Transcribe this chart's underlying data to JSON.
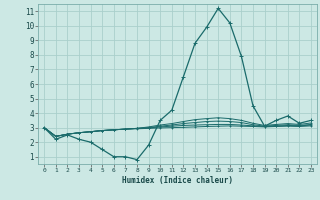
{
  "xlabel": "Humidex (Indice chaleur)",
  "bg_color": "#cce8e4",
  "grid_color": "#aacfcc",
  "line_color": "#1a6b6b",
  "xlim": [
    -0.5,
    23.5
  ],
  "ylim": [
    0.5,
    11.5
  ],
  "xticks": [
    0,
    1,
    2,
    3,
    4,
    5,
    6,
    7,
    8,
    9,
    10,
    11,
    12,
    13,
    14,
    15,
    16,
    17,
    18,
    19,
    20,
    21,
    22,
    23
  ],
  "yticks": [
    1,
    2,
    3,
    4,
    5,
    6,
    7,
    8,
    9,
    10,
    11
  ],
  "series": [
    [
      3.0,
      2.2,
      2.5,
      2.2,
      2.0,
      1.5,
      1.0,
      1.0,
      0.8,
      1.8,
      3.5,
      4.2,
      6.5,
      8.8,
      9.9,
      11.2,
      10.2,
      7.9,
      4.5,
      3.1,
      3.5,
      3.8,
      3.3,
      3.5
    ],
    [
      3.0,
      2.4,
      2.55,
      2.65,
      2.72,
      2.8,
      2.85,
      2.9,
      2.92,
      2.95,
      2.98,
      3.0,
      3.02,
      3.05,
      3.08,
      3.1,
      3.12,
      3.1,
      3.08,
      3.05,
      3.08,
      3.1,
      3.08,
      3.12
    ],
    [
      3.0,
      2.4,
      2.55,
      2.65,
      2.72,
      2.8,
      2.85,
      2.9,
      2.95,
      2.98,
      3.05,
      3.1,
      3.15,
      3.18,
      3.2,
      3.22,
      3.22,
      3.18,
      3.12,
      3.08,
      3.1,
      3.15,
      3.12,
      3.18
    ],
    [
      3.0,
      2.4,
      2.55,
      2.65,
      2.72,
      2.8,
      2.85,
      2.9,
      2.95,
      3.0,
      3.1,
      3.18,
      3.28,
      3.35,
      3.42,
      3.45,
      3.42,
      3.35,
      3.2,
      3.1,
      3.15,
      3.2,
      3.15,
      3.22
    ],
    [
      3.0,
      2.4,
      2.55,
      2.65,
      2.72,
      2.8,
      2.85,
      2.9,
      2.95,
      3.05,
      3.18,
      3.28,
      3.42,
      3.55,
      3.62,
      3.68,
      3.62,
      3.5,
      3.3,
      3.15,
      3.22,
      3.28,
      3.22,
      3.32
    ]
  ]
}
